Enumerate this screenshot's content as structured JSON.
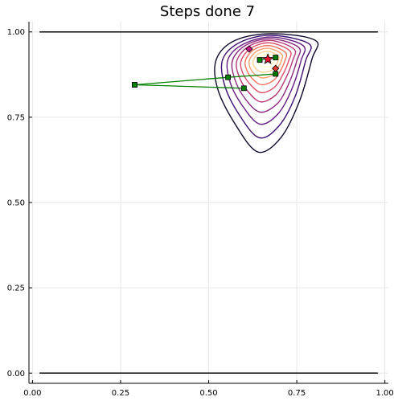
{
  "chart_data": {
    "type": "line",
    "title": "Steps done 7",
    "xlabel": "",
    "ylabel": "",
    "xlim": [
      -0.01,
      1.01
    ],
    "ylim": [
      -0.03,
      1.03
    ],
    "grid": true,
    "legend": "none",
    "x_ticks": [
      0.0,
      0.25,
      0.5,
      0.75,
      1.0
    ],
    "x_tick_labels": [
      "0.00",
      "0.25",
      "0.50",
      "0.75",
      "1.00"
    ],
    "y_ticks": [
      0.0,
      0.25,
      0.5,
      0.75,
      1.0
    ],
    "y_tick_labels": [
      "0.00",
      "0.25",
      "0.50",
      "0.75",
      "1.00"
    ],
    "bounds": {
      "x": [
        0.02,
        0.98
      ],
      "y_lower": 0.0,
      "y_upper": 1.0,
      "color": "#000000"
    },
    "contour": {
      "center": [
        0.665,
        0.915
      ],
      "colors": [
        "#0d0829",
        "#3b0f6f",
        "#641a80",
        "#8c2981",
        "#b73779",
        "#de4968",
        "#f7705c",
        "#fe9f6d",
        "#fecf92",
        "#fcfdbf"
      ],
      "levels": [
        [
          [
            0.64,
            0.648
          ],
          [
            0.705,
            0.69
          ],
          [
            0.757,
            0.795
          ],
          [
            0.793,
            0.92
          ],
          [
            0.803,
            0.975
          ],
          [
            0.68,
            0.995
          ],
          [
            0.575,
            0.975
          ],
          [
            0.522,
            0.92
          ],
          [
            0.525,
            0.835
          ],
          [
            0.575,
            0.73
          ]
        ],
        [
          [
            0.643,
            0.69
          ],
          [
            0.7,
            0.725
          ],
          [
            0.745,
            0.81
          ],
          [
            0.775,
            0.915
          ],
          [
            0.785,
            0.965
          ],
          [
            0.68,
            0.99
          ],
          [
            0.59,
            0.97
          ],
          [
            0.54,
            0.92
          ],
          [
            0.545,
            0.845
          ],
          [
            0.585,
            0.76
          ]
        ],
        [
          [
            0.645,
            0.73
          ],
          [
            0.697,
            0.76
          ],
          [
            0.735,
            0.83
          ],
          [
            0.762,
            0.915
          ],
          [
            0.768,
            0.96
          ],
          [
            0.68,
            0.985
          ],
          [
            0.6,
            0.965
          ],
          [
            0.555,
            0.92
          ],
          [
            0.56,
            0.855
          ],
          [
            0.595,
            0.785
          ]
        ],
        [
          [
            0.646,
            0.765
          ],
          [
            0.695,
            0.79
          ],
          [
            0.726,
            0.845
          ],
          [
            0.75,
            0.915
          ],
          [
            0.755,
            0.955
          ],
          [
            0.678,
            0.98
          ],
          [
            0.607,
            0.962
          ],
          [
            0.568,
            0.918
          ],
          [
            0.574,
            0.862
          ],
          [
            0.603,
            0.805
          ]
        ],
        [
          [
            0.648,
            0.795
          ],
          [
            0.69,
            0.815
          ],
          [
            0.717,
            0.86
          ],
          [
            0.738,
            0.915
          ],
          [
            0.742,
            0.95
          ],
          [
            0.676,
            0.975
          ],
          [
            0.614,
            0.958
          ],
          [
            0.58,
            0.916
          ],
          [
            0.586,
            0.87
          ],
          [
            0.612,
            0.825
          ]
        ],
        [
          [
            0.65,
            0.822
          ],
          [
            0.686,
            0.837
          ],
          [
            0.709,
            0.872
          ],
          [
            0.727,
            0.915
          ],
          [
            0.73,
            0.945
          ],
          [
            0.674,
            0.968
          ],
          [
            0.621,
            0.953
          ],
          [
            0.592,
            0.915
          ],
          [
            0.598,
            0.877
          ],
          [
            0.621,
            0.843
          ]
        ],
        [
          [
            0.652,
            0.845
          ],
          [
            0.683,
            0.857
          ],
          [
            0.702,
            0.883
          ],
          [
            0.716,
            0.915
          ],
          [
            0.718,
            0.94
          ],
          [
            0.672,
            0.96
          ],
          [
            0.628,
            0.948
          ],
          [
            0.604,
            0.915
          ],
          [
            0.61,
            0.884
          ],
          [
            0.629,
            0.858
          ]
        ],
        [
          [
            0.654,
            0.865
          ],
          [
            0.68,
            0.873
          ],
          [
            0.695,
            0.892
          ],
          [
            0.706,
            0.915
          ],
          [
            0.707,
            0.935
          ],
          [
            0.67,
            0.952
          ],
          [
            0.634,
            0.942
          ],
          [
            0.615,
            0.915
          ],
          [
            0.62,
            0.89
          ],
          [
            0.636,
            0.872
          ]
        ],
        [
          [
            0.656,
            0.882
          ],
          [
            0.677,
            0.887
          ],
          [
            0.689,
            0.9
          ],
          [
            0.697,
            0.915
          ],
          [
            0.697,
            0.93
          ],
          [
            0.669,
            0.943
          ],
          [
            0.64,
            0.935
          ],
          [
            0.626,
            0.915
          ],
          [
            0.63,
            0.897
          ],
          [
            0.643,
            0.885
          ]
        ],
        [
          [
            0.66,
            0.897
          ],
          [
            0.675,
            0.9
          ],
          [
            0.683,
            0.908
          ],
          [
            0.688,
            0.918
          ],
          [
            0.687,
            0.928
          ],
          [
            0.668,
            0.935
          ],
          [
            0.648,
            0.929
          ],
          [
            0.64,
            0.917
          ],
          [
            0.643,
            0.905
          ],
          [
            0.652,
            0.899
          ]
        ]
      ]
    },
    "paths": [
      {
        "color": "#008000",
        "points": [
          [
            0.29,
            0.845
          ],
          [
            0.555,
            0.867
          ],
          [
            0.69,
            0.877
          ]
        ],
        "marker": "square"
      },
      {
        "color": "#008000",
        "points": [
          [
            0.29,
            0.845
          ],
          [
            0.6,
            0.835
          ]
        ],
        "marker": "square"
      },
      {
        "color": "#008000",
        "points": [
          [
            0.645,
            0.918
          ],
          [
            0.69,
            0.925
          ]
        ],
        "marker": "square"
      }
    ],
    "extra_points": [
      {
        "x": 0.615,
        "y": 0.95,
        "marker": "diamond",
        "color": "#c71585"
      },
      {
        "x": 0.69,
        "y": 0.893,
        "marker": "diamond",
        "color": "#e03c31"
      }
    ],
    "optimum": {
      "x": 0.668,
      "y": 0.92,
      "marker": "star",
      "color": "#e8112d"
    }
  }
}
